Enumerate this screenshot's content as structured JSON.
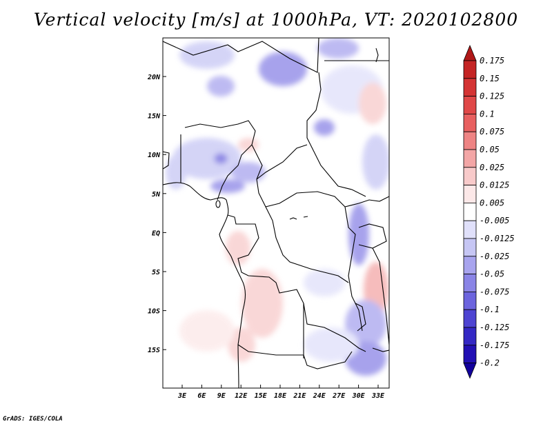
{
  "title": "Vertical velocity [m/s] at 1000hPa, VT: 2020102800",
  "credit": "GrADS: IGES/COLA",
  "map": {
    "region": "Central Africa",
    "lon_ticks": [
      "3E",
      "6E",
      "9E",
      "12E",
      "15E",
      "18E",
      "21E",
      "24E",
      "27E",
      "30E",
      "33E"
    ],
    "lat_ticks": [
      "20N",
      "15N",
      "10N",
      "5N",
      "EQ",
      "5S",
      "10S",
      "15S"
    ],
    "negative_color": "#5a50e0",
    "positive_color": "#e07070"
  },
  "colorbar": {
    "levels": [
      "0.175",
      "0.15",
      "0.125",
      "0.1",
      "0.075",
      "0.05",
      "0.025",
      "0.0125",
      "0.005",
      "-0.005",
      "-0.0125",
      "-0.025",
      "-0.05",
      "-0.075",
      "-0.1",
      "-0.125",
      "-0.175",
      "-0.2"
    ],
    "colors": [
      "#b01818",
      "#c42424",
      "#d43434",
      "#e04848",
      "#e86060",
      "#ee8484",
      "#f3a6a6",
      "#f8caca",
      "#fce8e8",
      "#ffffff",
      "#e0e0fa",
      "#c6c6f4",
      "#a8a4ee",
      "#8a84e6",
      "#6c64de",
      "#4e44d2",
      "#3428c4",
      "#2210b4",
      "#12009c"
    ]
  }
}
